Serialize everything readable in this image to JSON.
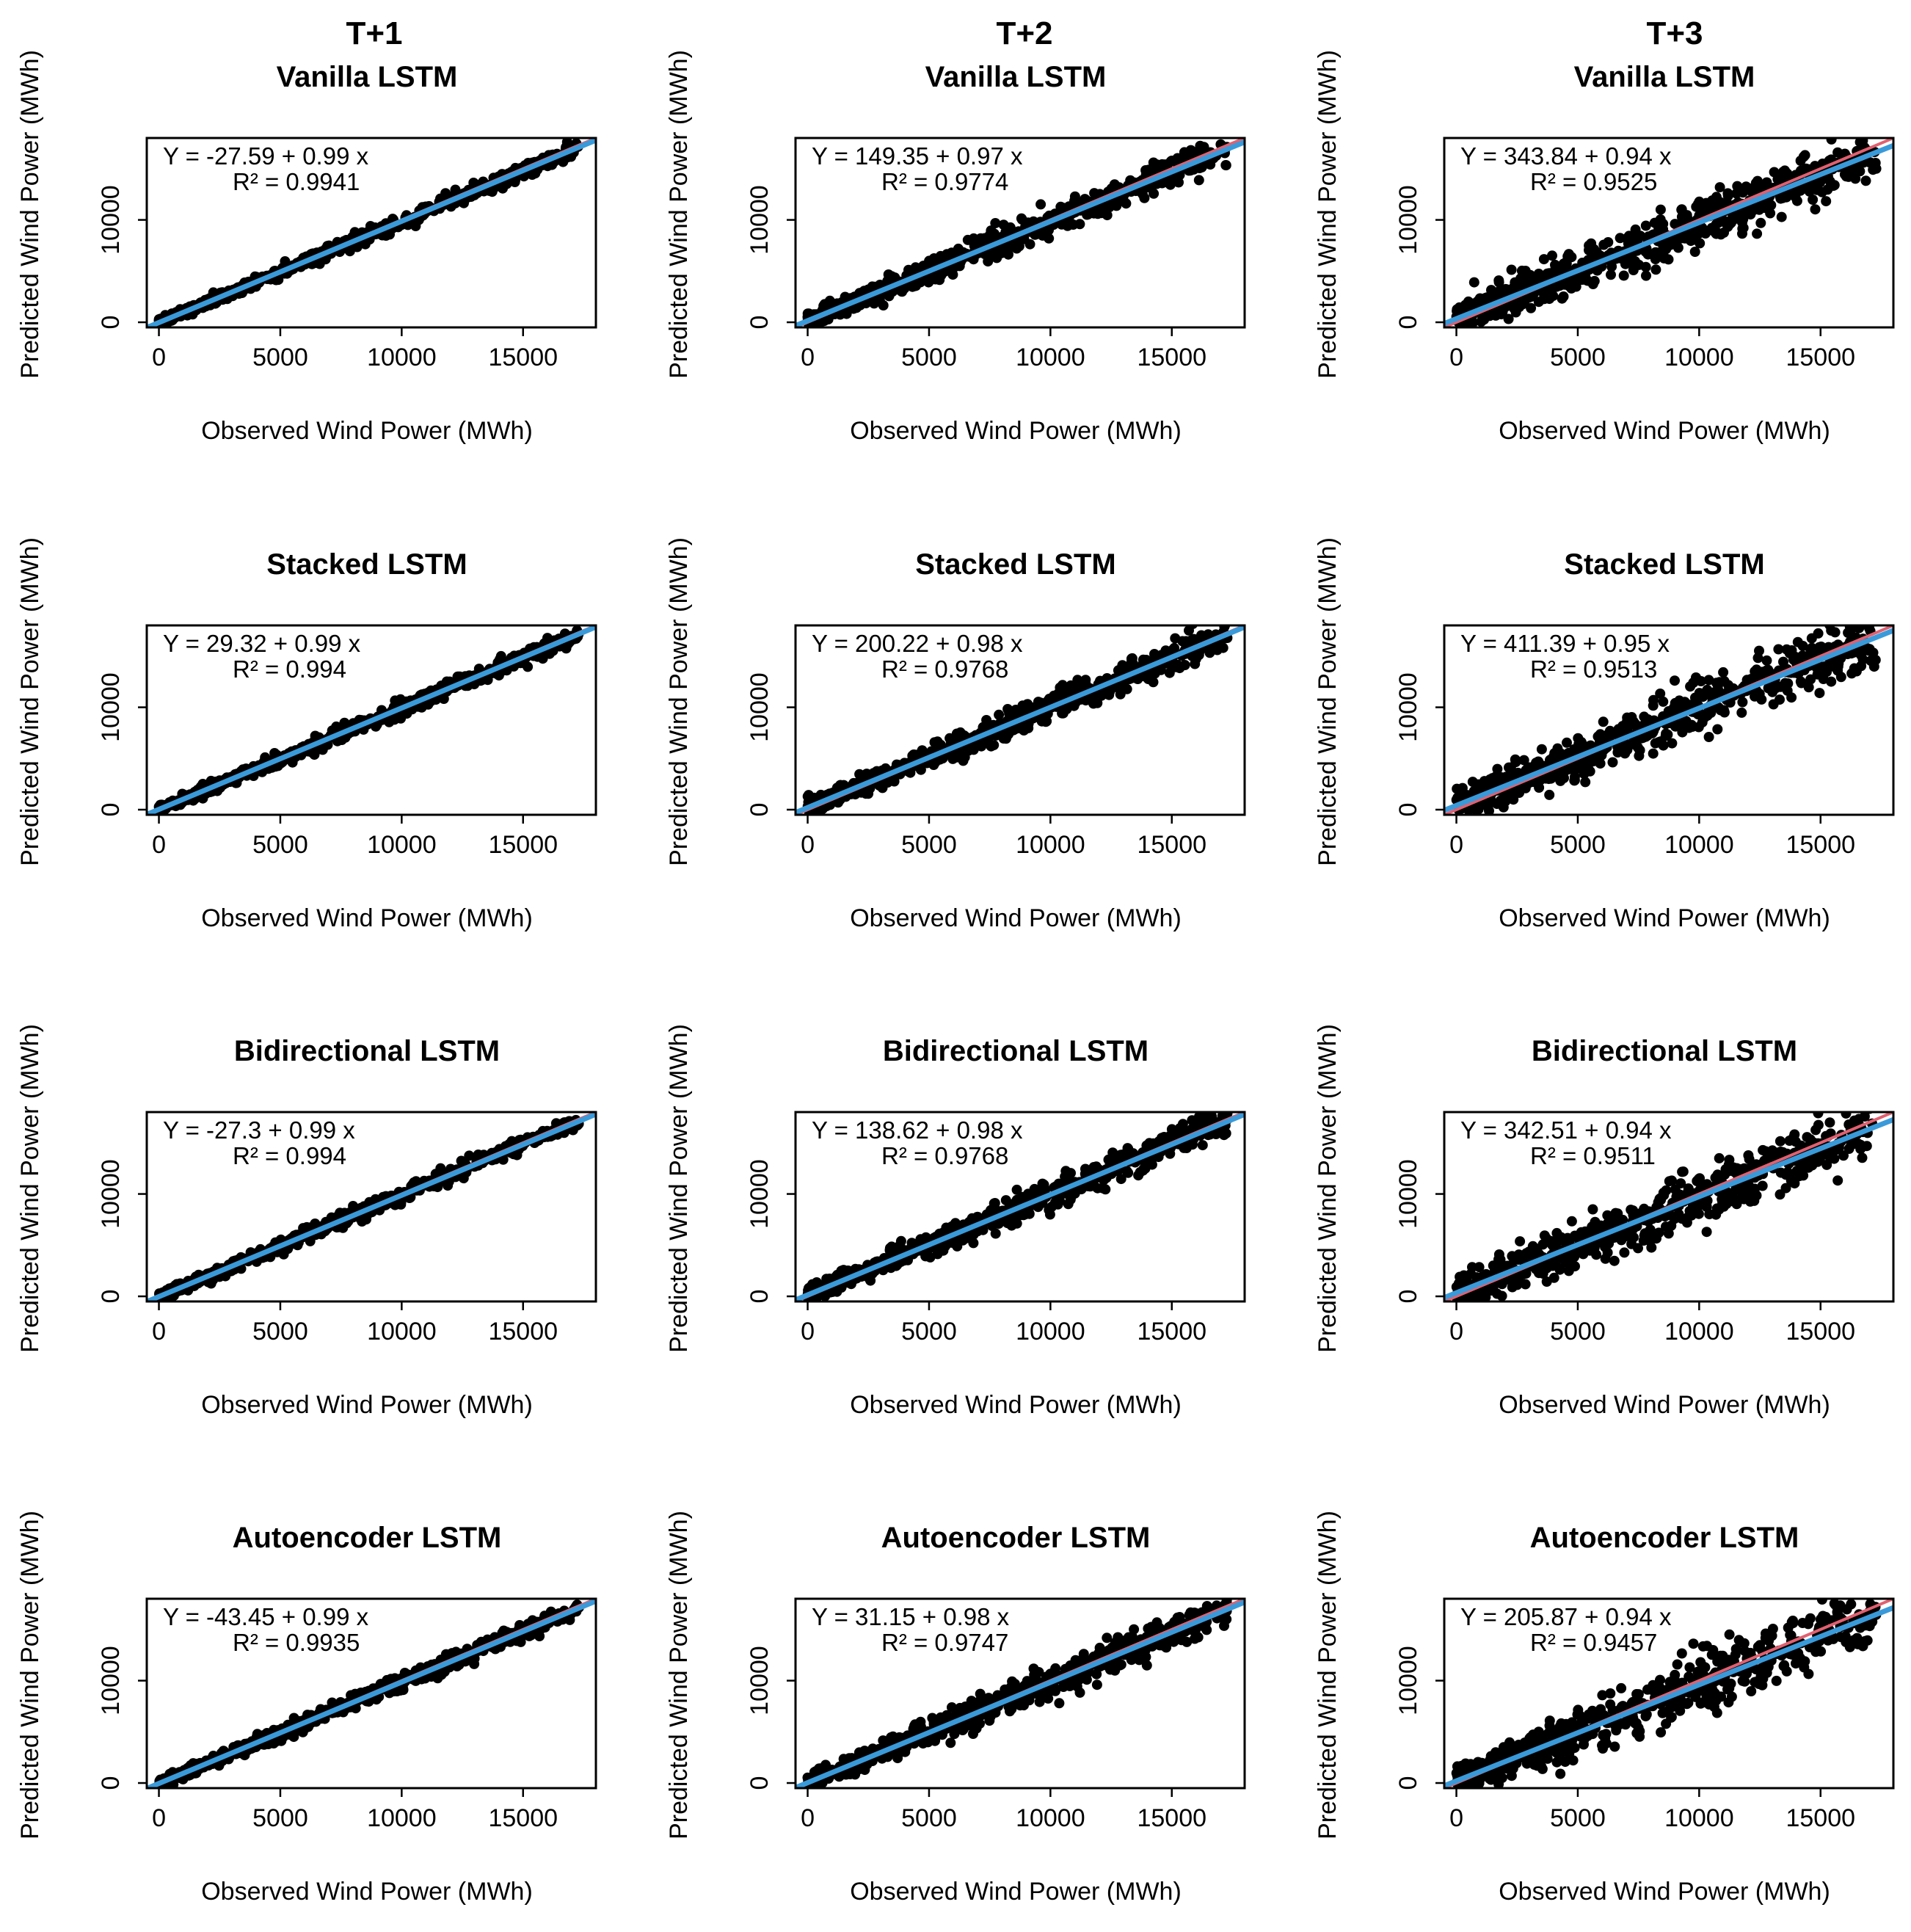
{
  "figure": {
    "column_headers": [
      "T+1",
      "T+2",
      "T+3"
    ],
    "row_titles": [
      "Vanilla LSTM",
      "Stacked LSTM",
      "Bidirectional LSTM",
      "Autoencoder LSTM"
    ],
    "colors": {
      "points": "#000000",
      "identity_line": "#e06070",
      "fit_line": "#3a9ad9"
    }
  },
  "chart_data": [
    {
      "type": "scatter",
      "title": "Vanilla LSTM",
      "column": "T+1",
      "xlabel": "Observed Wind Power (MWh)",
      "ylabel": "Predicted Wind Power (MWh)",
      "xlim": [
        -500,
        18000
      ],
      "ylim": [
        -500,
        18000
      ],
      "xticks": [
        0,
        5000,
        10000,
        15000
      ],
      "yticks": [
        0,
        10000
      ],
      "fit": {
        "intercept": -27.59,
        "slope": 0.99,
        "r2": 0.9941
      },
      "equation": "Y =  -27.59 + 0.99 x",
      "r2_label": "R² =  0.9941"
    },
    {
      "type": "scatter",
      "title": "Vanilla LSTM",
      "column": "T+2",
      "xlabel": "Observed Wind Power (MWh)",
      "ylabel": "Predicted Wind Power (MWh)",
      "xlim": [
        -500,
        18000
      ],
      "ylim": [
        -500,
        18000
      ],
      "xticks": [
        0,
        5000,
        10000,
        15000
      ],
      "yticks": [
        0,
        10000
      ],
      "fit": {
        "intercept": 149.35,
        "slope": 0.97,
        "r2": 0.9774
      },
      "equation": "Y =  149.35 + 0.97 x",
      "r2_label": "R² =  0.9774"
    },
    {
      "type": "scatter",
      "title": "Vanilla LSTM",
      "column": "T+3",
      "xlabel": "Observed Wind Power (MWh)",
      "ylabel": "Predicted Wind Power (MWh)",
      "xlim": [
        -500,
        18000
      ],
      "ylim": [
        -500,
        18000
      ],
      "xticks": [
        0,
        5000,
        10000,
        15000
      ],
      "yticks": [
        0,
        10000
      ],
      "fit": {
        "intercept": 343.84,
        "slope": 0.94,
        "r2": 0.9525
      },
      "equation": "Y =  343.84 + 0.94 x",
      "r2_label": "R² =  0.9525"
    },
    {
      "type": "scatter",
      "title": "Stacked LSTM",
      "column": "T+1",
      "xlabel": "Observed Wind Power (MWh)",
      "ylabel": "Predicted Wind Power (MWh)",
      "xlim": [
        -500,
        18000
      ],
      "ylim": [
        -500,
        18000
      ],
      "xticks": [
        0,
        5000,
        10000,
        15000
      ],
      "yticks": [
        0,
        10000
      ],
      "fit": {
        "intercept": 29.32,
        "slope": 0.99,
        "r2": 0.994
      },
      "equation": "Y =  29.32 + 0.99 x",
      "r2_label": "R² =  0.994"
    },
    {
      "type": "scatter",
      "title": "Stacked LSTM",
      "column": "T+2",
      "xlabel": "Observed Wind Power (MWh)",
      "ylabel": "Predicted Wind Power (MWh)",
      "xlim": [
        -500,
        18000
      ],
      "ylim": [
        -500,
        18000
      ],
      "xticks": [
        0,
        5000,
        10000,
        15000
      ],
      "yticks": [
        0,
        10000
      ],
      "fit": {
        "intercept": 200.22,
        "slope": 0.98,
        "r2": 0.9768
      },
      "equation": "Y =  200.22 + 0.98 x",
      "r2_label": "R² =  0.9768"
    },
    {
      "type": "scatter",
      "title": "Stacked LSTM",
      "column": "T+3",
      "xlabel": "Observed Wind Power (MWh)",
      "ylabel": "Predicted Wind Power (MWh)",
      "xlim": [
        -500,
        18000
      ],
      "ylim": [
        -500,
        18000
      ],
      "xticks": [
        0,
        5000,
        10000,
        15000
      ],
      "yticks": [
        0,
        10000
      ],
      "fit": {
        "intercept": 411.39,
        "slope": 0.95,
        "r2": 0.9513
      },
      "equation": "Y =  411.39 + 0.95 x",
      "r2_label": "R² =  0.9513"
    },
    {
      "type": "scatter",
      "title": "Bidirectional LSTM",
      "column": "T+1",
      "xlabel": "Observed Wind Power (MWh)",
      "ylabel": "Predicted Wind Power (MWh)",
      "xlim": [
        -500,
        18000
      ],
      "ylim": [
        -500,
        18000
      ],
      "xticks": [
        0,
        5000,
        10000,
        15000
      ],
      "yticks": [
        0,
        10000
      ],
      "fit": {
        "intercept": -27.3,
        "slope": 0.99,
        "r2": 0.994
      },
      "equation": "Y =  -27.3 + 0.99 x",
      "r2_label": "R² =  0.994"
    },
    {
      "type": "scatter",
      "title": "Bidirectional LSTM",
      "column": "T+2",
      "xlabel": "Observed Wind Power (MWh)",
      "ylabel": "Predicted Wind Power (MWh)",
      "xlim": [
        -500,
        18000
      ],
      "ylim": [
        -500,
        18000
      ],
      "xticks": [
        0,
        5000,
        10000,
        15000
      ],
      "yticks": [
        0,
        10000
      ],
      "fit": {
        "intercept": 138.62,
        "slope": 0.98,
        "r2": 0.9768
      },
      "equation": "Y =  138.62 + 0.98 x",
      "r2_label": "R² =  0.9768"
    },
    {
      "type": "scatter",
      "title": "Bidirectional LSTM",
      "column": "T+3",
      "xlabel": "Observed Wind Power (MWh)",
      "ylabel": "Predicted Wind Power (MWh)",
      "xlim": [
        -500,
        18000
      ],
      "ylim": [
        -500,
        18000
      ],
      "xticks": [
        0,
        5000,
        10000,
        15000
      ],
      "yticks": [
        0,
        10000
      ],
      "fit": {
        "intercept": 342.51,
        "slope": 0.94,
        "r2": 0.9511
      },
      "equation": "Y =  342.51 + 0.94 x",
      "r2_label": "R² =  0.9511"
    },
    {
      "type": "scatter",
      "title": "Autoencoder LSTM",
      "column": "T+1",
      "xlabel": "Observed Wind Power (MWh)",
      "ylabel": "Predicted Wind Power (MWh)",
      "xlim": [
        -500,
        18000
      ],
      "ylim": [
        -500,
        18000
      ],
      "xticks": [
        0,
        5000,
        10000,
        15000
      ],
      "yticks": [
        0,
        10000
      ],
      "fit": {
        "intercept": -43.45,
        "slope": 0.99,
        "r2": 0.9935
      },
      "equation": "Y =  -43.45 + 0.99 x",
      "r2_label": "R² =  0.9935"
    },
    {
      "type": "scatter",
      "title": "Autoencoder LSTM",
      "column": "T+2",
      "xlabel": "Observed Wind Power (MWh)",
      "ylabel": "Predicted Wind Power (MWh)",
      "xlim": [
        -500,
        18000
      ],
      "ylim": [
        -500,
        18000
      ],
      "xticks": [
        0,
        5000,
        10000,
        15000
      ],
      "yticks": [
        0,
        10000
      ],
      "fit": {
        "intercept": 31.15,
        "slope": 0.98,
        "r2": 0.9747
      },
      "equation": "Y =  31.15 + 0.98 x",
      "r2_label": "R² =  0.9747"
    },
    {
      "type": "scatter",
      "title": "Autoencoder LSTM",
      "column": "T+3",
      "xlabel": "Observed Wind Power (MWh)",
      "ylabel": "Predicted Wind Power (MWh)",
      "xlim": [
        -500,
        18000
      ],
      "ylim": [
        -500,
        18000
      ],
      "xticks": [
        0,
        5000,
        10000,
        15000
      ],
      "yticks": [
        0,
        10000
      ],
      "fit": {
        "intercept": 205.87,
        "slope": 0.94,
        "r2": 0.9457
      },
      "equation": "Y =  205.87 + 0.94 x",
      "r2_label": "R² =  0.9457"
    }
  ]
}
